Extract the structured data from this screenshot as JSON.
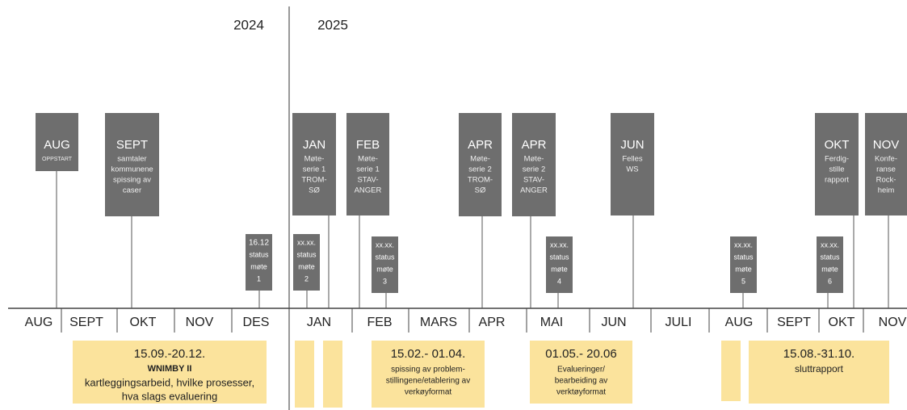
{
  "years": [
    "2024",
    "2025"
  ],
  "milestones": [
    {
      "title": "AUG",
      "lines": [
        "OPPSTART"
      ]
    },
    {
      "title": "SEPT",
      "lines": [
        "samtaler",
        "kommunene",
        "spissing av",
        "caser"
      ]
    },
    {
      "title": "JAN",
      "lines": [
        "Møte-",
        "serie 1",
        "TROM-",
        "SØ"
      ]
    },
    {
      "title": "FEB",
      "lines": [
        "Møte-",
        "serie 1",
        "STAV-",
        "ANGER"
      ]
    },
    {
      "title": "APR",
      "lines": [
        "Møte-",
        "serie 2",
        "TROM-",
        "SØ"
      ]
    },
    {
      "title": "APR",
      "lines": [
        "Møte-",
        "serie 2",
        "STAV-",
        "ANGER"
      ]
    },
    {
      "title": "JUN",
      "lines": [
        "Felles",
        "WS"
      ]
    },
    {
      "title": "OKT",
      "lines": [
        "Ferdig-",
        "stille",
        "rapport"
      ]
    },
    {
      "title": "NOV",
      "lines": [
        "Konfe-",
        "ranse",
        "Rock-",
        "heim"
      ]
    }
  ],
  "status": [
    {
      "lines": [
        "16.12",
        "status",
        "møte",
        "1"
      ]
    },
    {
      "lines": [
        "xx.xx.",
        "status",
        "møte",
        "2"
      ]
    },
    {
      "lines": [
        "xx.xx.",
        "status",
        "møte",
        "3"
      ]
    },
    {
      "lines": [
        "xx.xx.",
        "status",
        "møte",
        "4"
      ]
    },
    {
      "lines": [
        "xx.xx.",
        "status",
        "møte",
        "5"
      ]
    },
    {
      "lines": [
        "xx.xx.",
        "status",
        "møte",
        "6"
      ]
    }
  ],
  "months": [
    "AUG",
    "SEPT",
    "OKT",
    "NOV",
    "DES",
    "JAN",
    "FEB",
    "MARS",
    "APR",
    "MAI",
    "JUN",
    "JULI",
    "AUG",
    "SEPT",
    "OKT",
    "NOV"
  ],
  "periods": [
    {
      "dates": "15.09.-20.12.",
      "name": "WNIMBY II",
      "lines": [
        "kartleggingsarbeid, hvilke prosesser,",
        "hva slags evaluering"
      ]
    },
    {
      "dates": "15.02.- 01.04.",
      "lines": [
        "spissing av problem-",
        "stillingene/etablering av",
        "verkøyformat"
      ]
    },
    {
      "dates": "01.05.- 20.06",
      "lines": [
        "Evalueringer/",
        "bearbeiding av",
        "verktøyformat"
      ]
    },
    {
      "dates": "15.08.-31.10.",
      "lines": [
        "sluttrapport"
      ]
    }
  ]
}
